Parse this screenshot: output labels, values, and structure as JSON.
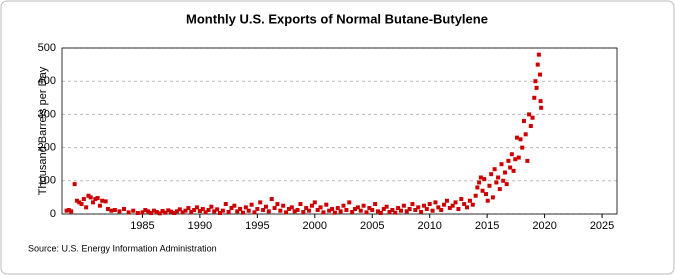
{
  "chart_data": {
    "type": "scatter",
    "title": "Monthly U.S. Exports of Normal Butane-Butylene",
    "y_label": "Thousand Barrels per Day",
    "source": "Source: U.S. Energy Information Administration",
    "color": "#cc0000",
    "grid": true,
    "xlim": [
      1978,
      2026.3
    ],
    "ylim": [
      0,
      500
    ],
    "xticks": [
      1985,
      1990,
      1995,
      2000,
      2005,
      2010,
      2015,
      2020,
      2025
    ],
    "yticks": [
      0,
      100,
      200,
      300,
      400,
      500
    ],
    "x": [
      1978.4,
      1978.6,
      1978.8,
      1979.1,
      1979.3,
      1979.5,
      1979.7,
      1979.9,
      1980.1,
      1980.3,
      1980.5,
      1980.7,
      1980.9,
      1981.1,
      1981.3,
      1981.5,
      1981.8,
      1982.0,
      1982.3,
      1982.6,
      1983.0,
      1983.4,
      1983.8,
      1984.2,
      1984.6,
      1985,
      1985.25,
      1985.5,
      1985.75,
      1986,
      1986.25,
      1986.5,
      1986.75,
      1987,
      1987.25,
      1987.5,
      1987.75,
      1988,
      1988.25,
      1988.5,
      1988.75,
      1989,
      1989.25,
      1989.5,
      1989.75,
      1990,
      1990.25,
      1990.5,
      1990.75,
      1991,
      1991.25,
      1991.5,
      1991.75,
      1992,
      1992.25,
      1992.5,
      1992.75,
      1993,
      1993.25,
      1993.5,
      1993.75,
      1994,
      1994.25,
      1994.5,
      1994.75,
      1995,
      1995.25,
      1995.5,
      1995.75,
      1996,
      1996.25,
      1996.5,
      1996.75,
      1997,
      1997.25,
      1997.5,
      1997.75,
      1998,
      1998.25,
      1998.5,
      1998.75,
      1999,
      1999.25,
      1999.5,
      1999.75,
      2000,
      2000.25,
      2000.5,
      2000.75,
      2001,
      2001.25,
      2001.5,
      2001.75,
      2002,
      2002.25,
      2002.5,
      2002.75,
      2003,
      2003.25,
      2003.5,
      2003.75,
      2004,
      2004.25,
      2004.5,
      2004.75,
      2005,
      2005.25,
      2005.5,
      2005.75,
      2006,
      2006.25,
      2006.5,
      2006.75,
      2007,
      2007.25,
      2007.5,
      2007.75,
      2008,
      2008.25,
      2008.5,
      2008.75,
      2009,
      2009.25,
      2009.5,
      2009.75,
      2010,
      2010.25,
      2010.5,
      2010.75,
      2011,
      2011.25,
      2011.5,
      2011.75,
      2012,
      2012.25,
      2012.5,
      2012.75,
      2013,
      2013.25,
      2013.5,
      2013.75,
      2014,
      2014.15,
      2014.3,
      2014.45,
      2014.6,
      2014.75,
      2014.9,
      2015.05,
      2015.2,
      2015.35,
      2015.5,
      2015.65,
      2015.8,
      2015.95,
      2016.1,
      2016.25,
      2016.4,
      2016.55,
      2016.7,
      2016.85,
      2017,
      2017.15,
      2017.3,
      2017.45,
      2017.6,
      2017.75,
      2017.9,
      2018.05,
      2018.2,
      2018.35,
      2018.5,
      2018.65,
      2018.8,
      2018.95,
      2019.1,
      2019.2,
      2019.3,
      2019.4,
      2019.5,
      2019.6,
      2019.65,
      2019.7
    ],
    "values": [
      10,
      12,
      8,
      90,
      40,
      35,
      30,
      45,
      20,
      55,
      50,
      35,
      45,
      48,
      25,
      40,
      38,
      15,
      10,
      12,
      8,
      15,
      5,
      10,
      3,
      5,
      12,
      8,
      3,
      10,
      6,
      2,
      9,
      4,
      11,
      7,
      3,
      8,
      14,
      5,
      10,
      18,
      6,
      12,
      20,
      9,
      15,
      5,
      12,
      22,
      8,
      14,
      3,
      10,
      30,
      6,
      18,
      25,
      8,
      15,
      4,
      20,
      10,
      28,
      5,
      15,
      35,
      12,
      22,
      8,
      45,
      18,
      30,
      10,
      25,
      5,
      15,
      20,
      8,
      12,
      30,
      6,
      18,
      10,
      25,
      35,
      12,
      20,
      5,
      28,
      10,
      15,
      4,
      18,
      8,
      25,
      12,
      35,
      6,
      15,
      20,
      10,
      25,
      5,
      18,
      12,
      30,
      8,
      3,
      15,
      22,
      6,
      12,
      4,
      18,
      10,
      25,
      8,
      15,
      30,
      12,
      20,
      6,
      25,
      15,
      30,
      10,
      35,
      20,
      12,
      28,
      40,
      18,
      25,
      35,
      15,
      45,
      30,
      20,
      40,
      28,
      55,
      80,
      95,
      110,
      70,
      105,
      60,
      40,
      85,
      120,
      50,
      135,
      95,
      110,
      75,
      150,
      100,
      125,
      90,
      160,
      140,
      180,
      130,
      165,
      230,
      170,
      225,
      200,
      280,
      240,
      160,
      300,
      265,
      290,
      350,
      400,
      380,
      450,
      480,
      420,
      340,
      320
    ]
  }
}
